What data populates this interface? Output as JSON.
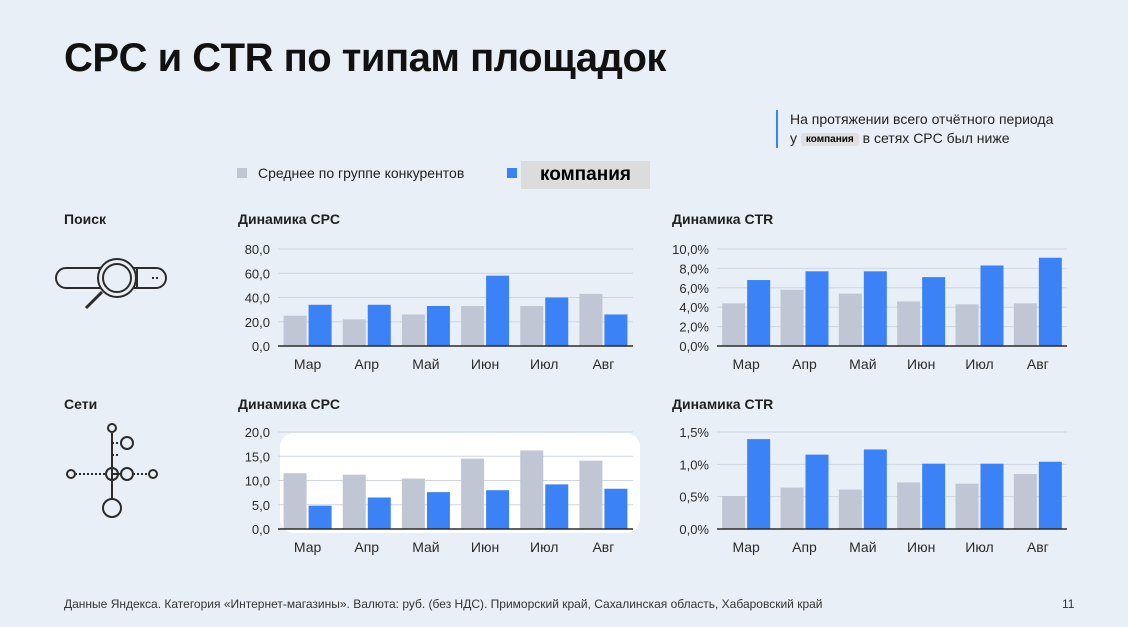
{
  "title": "CPC и CTR по типам площадок",
  "note": {
    "line1": "На протяжении всего отчётного периода",
    "prefix": "у",
    "brand": "компания",
    "suffix": "в сетях CPC был ниже"
  },
  "legend": {
    "competitors": "Среднее по группе конкурентов",
    "company": "компания"
  },
  "sections": {
    "search": "Поиск",
    "networks": "Сети"
  },
  "colors": {
    "competitors": "#c0c6d4",
    "company": "#3b82f6",
    "accent": "#3b82f6"
  },
  "icons": {
    "search": "search-bar-magnifier-icon",
    "networks": "network-nodes-icon"
  },
  "chart_titles": {
    "search_cpc": "Динамика CPC",
    "search_ctr": "Динамика CTR",
    "networks_cpc": "Динамика CPC",
    "networks_ctr": "Динамика CTR"
  },
  "chart_data": [
    {
      "id": "search_cpc",
      "type": "bar",
      "title": "Динамика CPC",
      "categories": [
        "Мар",
        "Апр",
        "Май",
        "Июн",
        "Июл",
        "Авг"
      ],
      "ylim": [
        0,
        80
      ],
      "yticks": [
        "0,0",
        "20,0",
        "40,0",
        "60,0",
        "80,0"
      ],
      "grid": true,
      "series": [
        {
          "name": "Среднее по группе конкурентов",
          "values": [
            25,
            22,
            26,
            33,
            33,
            43
          ]
        },
        {
          "name": "компания",
          "values": [
            34,
            34,
            33,
            58,
            40,
            26
          ]
        }
      ]
    },
    {
      "id": "search_ctr",
      "type": "bar",
      "title": "Динамика CTR",
      "categories": [
        "Мар",
        "Апр",
        "Май",
        "Июн",
        "Июл",
        "Авг"
      ],
      "ylim": [
        0,
        10
      ],
      "yticks": [
        "0,0%",
        "2,0%",
        "4,0%",
        "6,0%",
        "8,0%",
        "10,0%"
      ],
      "grid": true,
      "series": [
        {
          "name": "Среднее по группе конкурентов",
          "values": [
            4.4,
            5.8,
            5.4,
            4.6,
            4.3,
            4.4
          ]
        },
        {
          "name": "компания",
          "values": [
            6.8,
            7.7,
            7.7,
            7.1,
            8.3,
            9.1
          ]
        }
      ]
    },
    {
      "id": "networks_cpc",
      "type": "bar",
      "title": "Динамика CPC",
      "categories": [
        "Мар",
        "Апр",
        "Май",
        "Июн",
        "Июл",
        "Авг"
      ],
      "ylim": [
        0,
        20
      ],
      "yticks": [
        "0,0",
        "5,0",
        "10,0",
        "15,0",
        "20,0"
      ],
      "grid": true,
      "series": [
        {
          "name": "Среднее по группе конкурентов",
          "values": [
            11.5,
            11.2,
            10.4,
            14.5,
            16.2,
            14.1
          ]
        },
        {
          "name": "компания",
          "values": [
            4.8,
            6.5,
            7.6,
            8.0,
            9.2,
            8.3
          ]
        }
      ]
    },
    {
      "id": "networks_ctr",
      "type": "bar",
      "title": "Динамика CTR",
      "categories": [
        "Мар",
        "Апр",
        "Май",
        "Июн",
        "Июл",
        "Авг"
      ],
      "ylim": [
        0,
        1.5
      ],
      "yticks": [
        "0,0%",
        "0,5%",
        "1,0%",
        "1,5%"
      ],
      "grid": true,
      "series": [
        {
          "name": "Среднее по группе конкурентов",
          "values": [
            0.51,
            0.64,
            0.61,
            0.72,
            0.7,
            0.85
          ]
        },
        {
          "name": "компания",
          "values": [
            1.39,
            1.15,
            1.23,
            1.01,
            1.01,
            1.04
          ]
        }
      ]
    }
  ],
  "footer": "Данные Яндекса. Категория «Интернет-магазины». Валюта: руб. (без НДС). Приморский край, Сахалинская область, Хабаровский край",
  "page_number": "11"
}
